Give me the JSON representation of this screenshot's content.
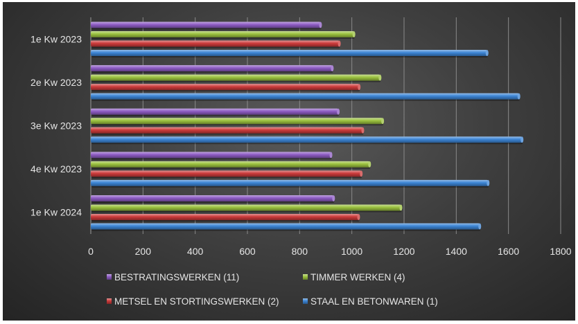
{
  "chart_data": {
    "type": "bar",
    "orientation": "horizontal",
    "categories": [
      "1e Kw 2023",
      "2e Kw 2023",
      "3e Kw 2023",
      "4e Kw 2023",
      "1e Kw 2024"
    ],
    "series": [
      {
        "name": "BESTRATINGSWERKEN (11)",
        "color": "#8e5cc4",
        "values": [
          880,
          925,
          948,
          920,
          930
        ]
      },
      {
        "name": "TIMMER WERKEN (4)",
        "color": "#9bc23f",
        "values": [
          1008,
          1108,
          1118,
          1068,
          1188
        ]
      },
      {
        "name": "METSEL EN STORTINGSWERKEN (2)",
        "color": "#cc3b3b",
        "values": [
          952,
          1028,
          1042,
          1036,
          1026
        ]
      },
      {
        "name": "STAAL EN  BETONWAREN (1)",
        "color": "#3d86d6",
        "values": [
          1518,
          1640,
          1652,
          1522,
          1490
        ]
      }
    ],
    "xlim": [
      0,
      1800
    ],
    "xticks": [
      0,
      200,
      400,
      600,
      800,
      1000,
      1200,
      1400,
      1600,
      1800
    ],
    "grid": true,
    "legend_position": "bottom",
    "title": "",
    "xlabel": "",
    "ylabel": ""
  }
}
